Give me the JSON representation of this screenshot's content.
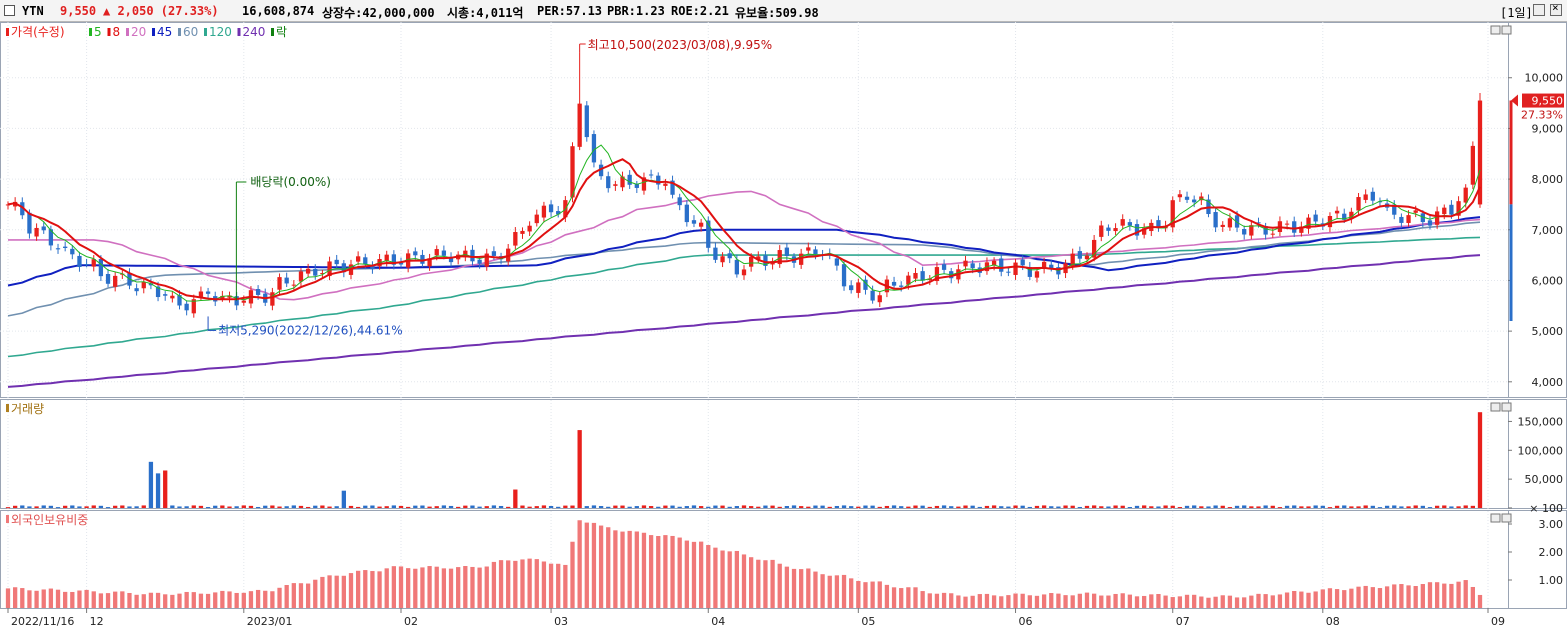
{
  "header": {
    "ticker": "YTN",
    "price": "9,550",
    "change": "▲ 2,050 (27.33%)",
    "volume": "16,608,874",
    "listed_shares": "상장수:42,000,000",
    "market_cap": "시총:4,011억",
    "per": "PER:57.13",
    "pbr": "PBR:1.23",
    "roe": "ROE:2.21",
    "turnover": "유보율:509.98",
    "period": "[1일]"
  },
  "colors": {
    "up": "#e8201c",
    "down": "#2a6fc9",
    "ma5": "#22b522",
    "ma8": "#e01010",
    "ma20": "#d070c0",
    "ma45": "#1020c0",
    "ma60": "#7090b0",
    "ma120": "#30a890",
    "ma240": "#7030b0",
    "foreign": "#f07878"
  },
  "chart_data": [
    {
      "type": "candlestick",
      "legend": [
        {
          "label": "가격(수정)",
          "color": "#e8201c"
        },
        {
          "label": "5",
          "color": "#22b522"
        },
        {
          "label": "8",
          "color": "#e01010"
        },
        {
          "label": "20",
          "color": "#d070c0"
        },
        {
          "label": "45",
          "color": "#1020c0"
        },
        {
          "label": "60",
          "color": "#7090b0"
        },
        {
          "label": "120",
          "color": "#30a890"
        },
        {
          "label": "240",
          "color": "#7030b0"
        },
        {
          "label": "락",
          "color": "#108010"
        }
      ],
      "yticks": [
        4000,
        5000,
        6000,
        7000,
        8000,
        9000,
        10000
      ],
      "ytick_labels": [
        "4,000",
        "5,000",
        "6,000",
        "7,000",
        "8,000",
        "9,000",
        "10,000"
      ],
      "ylim": [
        3700,
        11100
      ],
      "last_price_label": "9,550",
      "last_change_label": "27.33%",
      "annotations": [
        {
          "text": "최고10,500(2023/03/08),9.95%",
          "date": "2023/03/08",
          "value": 10500
        },
        {
          "text": "최저5,290(2022/12/26),44.61%",
          "date": "2022/12/26",
          "value": 5290
        },
        {
          "text": "배당락(0.00%)",
          "date": "2022/12/28"
        }
      ],
      "ohlc_anchors": [
        [
          "2022-11-16",
          7500
        ],
        [
          "2022-11-25",
          6700
        ],
        [
          "2022-12-05",
          6100
        ],
        [
          "2022-12-15",
          5800
        ],
        [
          "2022-12-20",
          5500
        ],
        [
          "2022-12-26",
          5800
        ],
        [
          "2022-12-28",
          5600
        ],
        [
          "2023-01-05",
          5700
        ],
        [
          "2023-01-12",
          6100
        ],
        [
          "2023-01-20",
          6300
        ],
        [
          "2023-01-31",
          6400
        ],
        [
          "2023-02-10",
          6500
        ],
        [
          "2023-02-20",
          6400
        ],
        [
          "2023-02-25",
          7100
        ],
        [
          "2023-03-02",
          7400
        ],
        [
          "2023-03-06",
          7500
        ],
        [
          "2023-03-08",
          9600
        ],
        [
          "2023-03-10",
          8200
        ],
        [
          "2023-03-15",
          7900
        ],
        [
          "2023-03-24",
          8000
        ],
        [
          "2023-03-31",
          7000
        ],
        [
          "2023-04-07",
          6200
        ],
        [
          "2023-04-12",
          6400
        ],
        [
          "2023-04-20",
          6500
        ],
        [
          "2023-04-25",
          6600
        ],
        [
          "2023-04-28",
          6000
        ],
        [
          "2023-05-05",
          5700
        ],
        [
          "2023-05-10",
          6000
        ],
        [
          "2023-05-20",
          6200
        ],
        [
          "2023-05-26",
          6300
        ],
        [
          "2023-06-05",
          6200
        ],
        [
          "2023-06-12",
          6300
        ],
        [
          "2023-06-20",
          7100
        ],
        [
          "2023-06-28",
          7000
        ],
        [
          "2023-07-05",
          7700
        ],
        [
          "2023-07-12",
          7100
        ],
        [
          "2023-07-20",
          7000
        ],
        [
          "2023-07-28",
          7100
        ],
        [
          "2023-08-05",
          7300
        ],
        [
          "2023-08-10",
          7700
        ],
        [
          "2023-08-14",
          7300
        ],
        [
          "2023-08-22",
          7200
        ],
        [
          "2023-08-29",
          7700
        ],
        [
          "2023-08-31",
          9550
        ]
      ],
      "ma_lines": {
        "ma240": [
          [
            "2022-11-16",
            3900
          ],
          [
            "2023-08-31",
            6500
          ]
        ],
        "ma120": [
          [
            "2022-11-16",
            4500
          ],
          [
            "2023-01-31",
            5500
          ],
          [
            "2023-03-31",
            6500
          ],
          [
            "2023-06-15",
            6500
          ],
          [
            "2023-08-31",
            6850
          ]
        ],
        "ma60": [
          [
            "2022-11-16",
            5300
          ],
          [
            "2022-12-15",
            6100
          ],
          [
            "2023-02-15",
            6300
          ],
          [
            "2023-03-31",
            6750
          ],
          [
            "2023-05-15",
            6700
          ],
          [
            "2023-06-15",
            6300
          ],
          [
            "2023-08-31",
            7150
          ]
        ],
        "ma45": [
          [
            "2022-11-16",
            5900
          ],
          [
            "2022-11-30",
            6300
          ],
          [
            "2023-01-31",
            6250
          ],
          [
            "2023-02-28",
            6300
          ],
          [
            "2023-03-31",
            7000
          ],
          [
            "2023-04-28",
            7000
          ],
          [
            "2023-05-26",
            6600
          ],
          [
            "2023-06-20",
            6200
          ],
          [
            "2023-08-31",
            7250
          ]
        ],
        "ma20": [
          [
            "2022-11-16",
            6800
          ],
          [
            "2022-12-05",
            6800
          ],
          [
            "2023-01-10",
            5600
          ],
          [
            "2023-02-20",
            6400
          ],
          [
            "2023-03-20",
            7400
          ],
          [
            "2023-04-10",
            7800
          ],
          [
            "2023-05-15",
            6300
          ],
          [
            "2023-06-25",
            6600
          ],
          [
            "2023-08-31",
            7200
          ]
        ]
      }
    },
    {
      "type": "bar",
      "title": "거래량",
      "yticks": [
        100,
        50000,
        100000,
        150000
      ],
      "ytick_labels": [
        "× 100",
        "50,000",
        "100,000",
        "150,000"
      ],
      "ylim": [
        0,
        175000
      ],
      "spikes": [
        {
          "date": "2022-12-14",
          "value": 80000
        },
        {
          "date": "2022-12-15",
          "value": 60000
        },
        {
          "date": "2022-12-16",
          "value": 65000
        },
        {
          "date": "2023-03-08",
          "value": 135000
        },
        {
          "date": "2023-02-23",
          "value": 32000
        },
        {
          "date": "2023-01-20",
          "value": 30000
        },
        {
          "date": "2023-08-31",
          "value": 166000
        }
      ]
    },
    {
      "type": "bar",
      "title": "외국인보유비중",
      "yticks": [
        1.0,
        2.0,
        3.0
      ],
      "ytick_labels": [
        "1.00",
        "2.00",
        "3.00"
      ],
      "ylim": [
        0,
        3.5
      ],
      "anchors": [
        [
          "2022-11-16",
          0.7
        ],
        [
          "2022-12-15",
          0.5
        ],
        [
          "2023-01-05",
          0.6
        ],
        [
          "2023-01-20",
          1.2
        ],
        [
          "2023-01-31",
          1.45
        ],
        [
          "2023-02-15",
          1.45
        ],
        [
          "2023-02-25",
          1.8
        ],
        [
          "2023-03-06",
          1.5
        ],
        [
          "2023-03-08",
          3.15
        ],
        [
          "2023-03-15",
          2.8
        ],
        [
          "2023-03-28",
          2.5
        ],
        [
          "2023-04-05",
          2.1
        ],
        [
          "2023-04-20",
          1.4
        ],
        [
          "2023-05-05",
          0.9
        ],
        [
          "2023-05-20",
          0.45
        ],
        [
          "2023-06-15",
          0.5
        ],
        [
          "2023-07-15",
          0.4
        ],
        [
          "2023-08-05",
          0.7
        ],
        [
          "2023-08-29",
          0.95
        ],
        [
          "2023-08-31",
          0.5
        ]
      ]
    }
  ],
  "x_axis": {
    "tick_labels": [
      "2022/11/16",
      "12",
      "2023/01",
      "02",
      "03",
      "04",
      "05",
      "06",
      "07",
      "08",
      "09"
    ],
    "tick_dates": [
      "2022-11-16",
      "2022-12-01",
      "2023-01-02",
      "2023-02-01",
      "2023-03-02",
      "2023-04-03",
      "2023-05-02",
      "2023-06-01",
      "2023-07-03",
      "2023-08-01",
      "2023-09-01"
    ]
  }
}
